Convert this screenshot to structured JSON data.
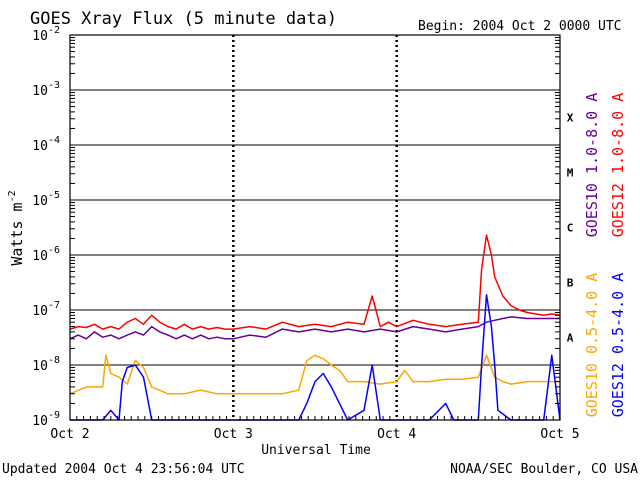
{
  "chart_data": {
    "type": "line",
    "title": "GOES Xray Flux (5 minute data)",
    "begin_label": "Begin:  2004 Oct 2 0000 UTC",
    "ylabel_base": "Watts m",
    "ylabel_exp": "-2",
    "xlabel": "Universal Time",
    "x_ticks": [
      "Oct 2",
      "Oct 3",
      "Oct 4",
      "Oct 5"
    ],
    "xlim": [
      0,
      3
    ],
    "y_scale": "log",
    "ylim": [
      1e-09,
      0.01
    ],
    "y_ticks": [
      {
        "base": "10",
        "exp": "-2",
        "value": 0.01
      },
      {
        "base": "10",
        "exp": "-3",
        "value": 0.001
      },
      {
        "base": "10",
        "exp": "-4",
        "value": 0.0001
      },
      {
        "base": "10",
        "exp": "-5",
        "value": 1e-05
      },
      {
        "base": "10",
        "exp": "-6",
        "value": 1e-06
      },
      {
        "base": "10",
        "exp": "-7",
        "value": 1e-07
      },
      {
        "base": "10",
        "exp": "-8",
        "value": 1e-08
      },
      {
        "base": "10",
        "exp": "-9",
        "value": 1e-09
      }
    ],
    "flare_classes": [
      {
        "label": "X",
        "value": 0.000316
      },
      {
        "label": "M",
        "value": 3.16e-05
      },
      {
        "label": "C",
        "value": 3.16e-06
      },
      {
        "label": "B",
        "value": 3.16e-07
      },
      {
        "label": "A",
        "value": 3.16e-08
      }
    ],
    "grid": "horizontal lines at each decade from 1e-8 to 1e-3; dotted vertical lines at each day",
    "series": [
      {
        "name": "GOES12 1.0-8.0 A",
        "color": "#ff0000",
        "x": [
          0,
          0.05,
          0.1,
          0.15,
          0.2,
          0.25,
          0.3,
          0.35,
          0.4,
          0.45,
          0.5,
          0.55,
          0.6,
          0.65,
          0.7,
          0.75,
          0.8,
          0.85,
          0.9,
          0.95,
          1.0,
          1.1,
          1.2,
          1.3,
          1.4,
          1.5,
          1.6,
          1.7,
          1.8,
          1.85,
          1.9,
          1.95,
          2.0,
          2.1,
          2.2,
          2.3,
          2.4,
          2.5,
          2.52,
          2.55,
          2.58,
          2.6,
          2.65,
          2.7,
          2.75,
          2.8,
          2.85,
          2.9,
          2.95,
          3.0
        ],
        "values": [
          4.5e-08,
          5e-08,
          4.8e-08,
          5.5e-08,
          4.5e-08,
          5e-08,
          4.5e-08,
          6e-08,
          7e-08,
          5.5e-08,
          8e-08,
          6e-08,
          5e-08,
          4.5e-08,
          5.5e-08,
          4.5e-08,
          5e-08,
          4.5e-08,
          4.8e-08,
          4.5e-08,
          4.5e-08,
          5e-08,
          4.5e-08,
          6e-08,
          5e-08,
          5.5e-08,
          5e-08,
          6e-08,
          5.5e-08,
          1.8e-07,
          5e-08,
          6e-08,
          5e-08,
          6.5e-08,
          5.5e-08,
          5e-08,
          5.5e-08,
          6e-08,
          5.5e-07,
          2.3e-06,
          1e-06,
          4e-07,
          1.8e-07,
          1.2e-07,
          1e-07,
          9e-08,
          8.5e-08,
          8e-08,
          8.5e-08,
          8e-08
        ]
      },
      {
        "name": "GOES10 1.0-8.0 A",
        "color": "#660099",
        "x": [
          0,
          0.05,
          0.1,
          0.15,
          0.2,
          0.25,
          0.3,
          0.35,
          0.4,
          0.45,
          0.5,
          0.55,
          0.6,
          0.65,
          0.7,
          0.75,
          0.8,
          0.85,
          0.9,
          0.95,
          1.0,
          1.1,
          1.2,
          1.3,
          1.4,
          1.5,
          1.6,
          1.7,
          1.8,
          1.9,
          2.0,
          2.1,
          2.2,
          2.3,
          2.4,
          2.5,
          2.55,
          2.6,
          2.65,
          2.7,
          2.8,
          2.9,
          3.0
        ],
        "values": [
          3e-08,
          3.5e-08,
          3e-08,
          4e-08,
          3.2e-08,
          3.5e-08,
          3e-08,
          3.5e-08,
          4e-08,
          3.5e-08,
          5e-08,
          4e-08,
          3.5e-08,
          3e-08,
          3.5e-08,
          3e-08,
          3.5e-08,
          3e-08,
          3.2e-08,
          3e-08,
          3e-08,
          3.5e-08,
          3.2e-08,
          4.5e-08,
          4e-08,
          4.5e-08,
          4e-08,
          4.5e-08,
          4e-08,
          4.5e-08,
          4e-08,
          5e-08,
          4.5e-08,
          4e-08,
          4.5e-08,
          5e-08,
          6e-08,
          6.5e-08,
          7e-08,
          7.5e-08,
          7e-08,
          7e-08,
          7e-08
        ]
      },
      {
        "name": "GOES10 0.5-4.0 A",
        "color": "#ffa500",
        "x": [
          0,
          0.1,
          0.2,
          0.22,
          0.25,
          0.3,
          0.35,
          0.4,
          0.45,
          0.5,
          0.6,
          0.7,
          0.8,
          0.9,
          1.0,
          1.1,
          1.2,
          1.3,
          1.4,
          1.45,
          1.5,
          1.55,
          1.6,
          1.65,
          1.7,
          1.8,
          1.9,
          2.0,
          2.05,
          2.1,
          2.2,
          2.3,
          2.4,
          2.5,
          2.55,
          2.6,
          2.65,
          2.7,
          2.8,
          2.9,
          3.0
        ],
        "values": [
          3e-09,
          4e-09,
          4e-09,
          1.5e-08,
          7e-09,
          6e-09,
          4.5e-09,
          1.2e-08,
          9e-09,
          4e-09,
          3e-09,
          3e-09,
          3.5e-09,
          3e-09,
          3e-09,
          3e-09,
          3e-09,
          3e-09,
          3.5e-09,
          1.2e-08,
          1.5e-08,
          1.3e-08,
          1e-08,
          8e-09,
          5e-09,
          5e-09,
          4.5e-09,
          5e-09,
          8e-09,
          5e-09,
          5e-09,
          5.5e-09,
          5.5e-09,
          6e-09,
          1.5e-08,
          6e-09,
          5e-09,
          4.5e-09,
          5e-09,
          5e-09,
          5e-09
        ]
      },
      {
        "name": "GOES12 0.5-4.0 A",
        "color": "#0000ff",
        "x": [
          0,
          0.2,
          0.25,
          0.3,
          0.32,
          0.35,
          0.4,
          0.45,
          0.5,
          0.6,
          0.8,
          1.0,
          1.2,
          1.4,
          1.45,
          1.5,
          1.55,
          1.6,
          1.65,
          1.7,
          1.8,
          1.85,
          1.9,
          2.0,
          2.2,
          2.3,
          2.35,
          2.4,
          2.5,
          2.52,
          2.55,
          2.58,
          2.6,
          2.62,
          2.7,
          2.8,
          2.9,
          2.95,
          3.0
        ],
        "values": [
          1e-09,
          1e-09,
          1.5e-09,
          1e-09,
          5e-09,
          9e-09,
          1e-08,
          6e-09,
          1e-09,
          1e-09,
          1e-09,
          1e-09,
          1e-09,
          1e-09,
          2e-09,
          5e-09,
          7e-09,
          4e-09,
          2e-09,
          1e-09,
          1.5e-09,
          1e-08,
          1e-09,
          1e-09,
          1e-09,
          2e-09,
          1e-09,
          1e-09,
          1e-09,
          1e-08,
          1.9e-07,
          5e-08,
          1e-08,
          1.5e-09,
          1e-09,
          1e-09,
          1e-09,
          1.5e-08,
          1e-09
        ]
      }
    ]
  },
  "footer": {
    "updated": "Updated 2004 Oct  4 23:56:04 UTC",
    "source": "NOAA/SEC Boulder, CO USA"
  }
}
